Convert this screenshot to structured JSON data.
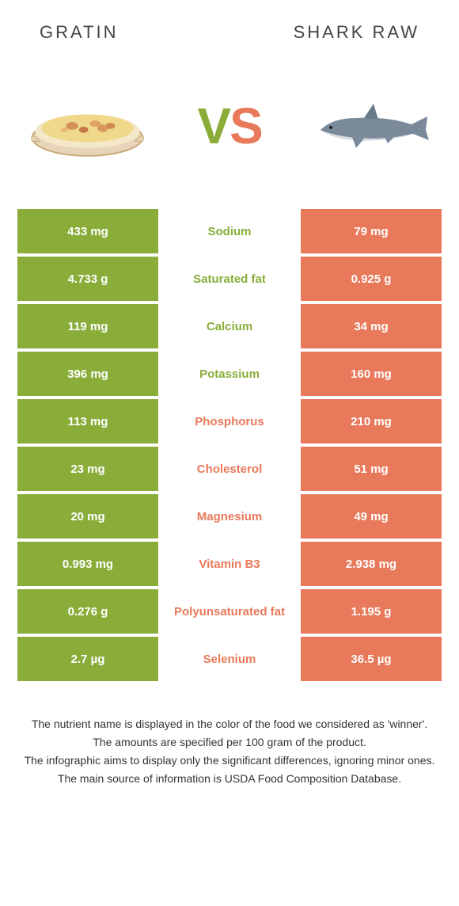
{
  "colors": {
    "left": "#8aad3a",
    "right": "#e8795a",
    "text": "#333333"
  },
  "header": {
    "left_title": "GRATIN",
    "right_title": "SHARK RAW",
    "vs_v": "V",
    "vs_s": "S"
  },
  "table": {
    "rows": [
      {
        "left": "433 mg",
        "label": "Sodium",
        "right": "79 mg",
        "winner": "left"
      },
      {
        "left": "4.733 g",
        "label": "Saturated fat",
        "right": "0.925 g",
        "winner": "left"
      },
      {
        "left": "119 mg",
        "label": "Calcium",
        "right": "34 mg",
        "winner": "left"
      },
      {
        "left": "396 mg",
        "label": "Potassium",
        "right": "160 mg",
        "winner": "left"
      },
      {
        "left": "113 mg",
        "label": "Phosphorus",
        "right": "210 mg",
        "winner": "right"
      },
      {
        "left": "23 mg",
        "label": "Cholesterol",
        "right": "51 mg",
        "winner": "right"
      },
      {
        "left": "20 mg",
        "label": "Magnesium",
        "right": "49 mg",
        "winner": "right"
      },
      {
        "left": "0.993 mg",
        "label": "Vitamin B3",
        "right": "2.938 mg",
        "winner": "right"
      },
      {
        "left": "0.276 g",
        "label": "Polyunsaturated fat",
        "right": "1.195 g",
        "winner": "right"
      },
      {
        "left": "2.7 µg",
        "label": "Selenium",
        "right": "36.5 µg",
        "winner": "right"
      }
    ]
  },
  "footer": {
    "line1": "The nutrient name is displayed in the color of the food we considered as 'winner'.",
    "line2": "The amounts are specified per 100 gram of the product.",
    "line3": "The infographic aims to display only the significant differences, ignoring minor ones.",
    "line4": "The main source of information is USDA Food Composition Database."
  }
}
